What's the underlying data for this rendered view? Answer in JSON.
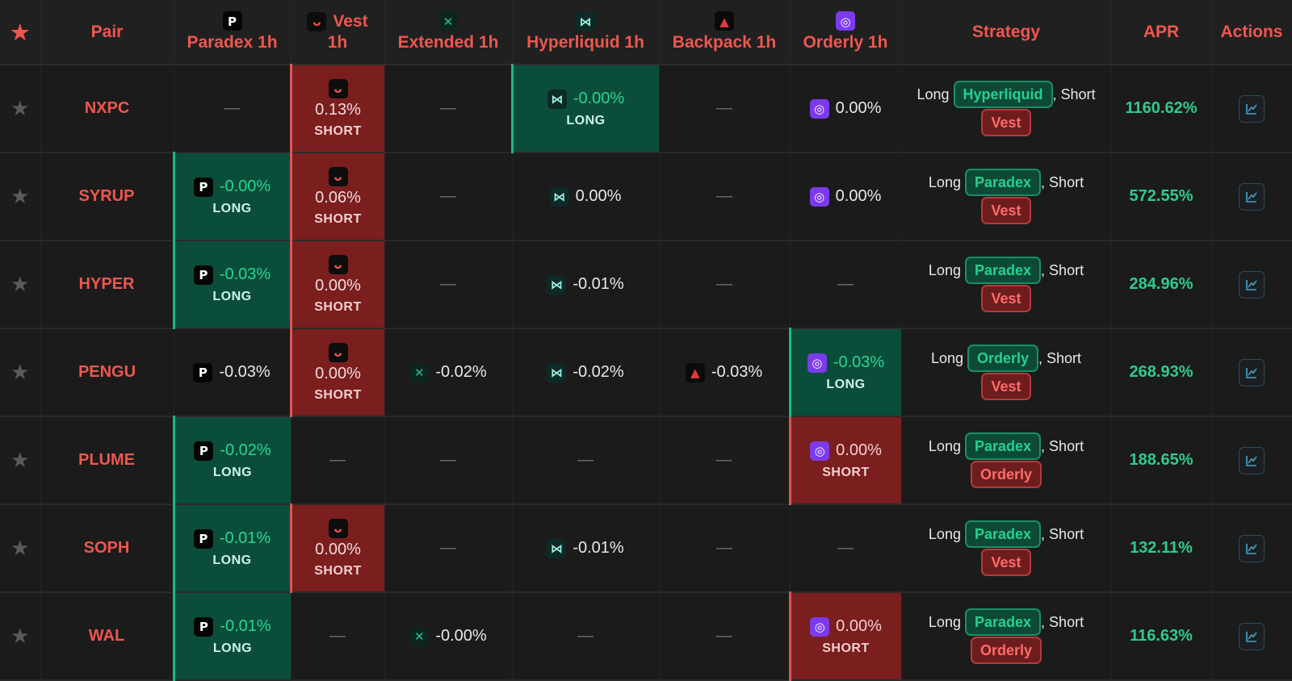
{
  "header": {
    "star": "★",
    "pair": "Pair",
    "paradex": "Paradex 1h",
    "vest_line1": "Vest",
    "vest_line2": "1h",
    "extended": "Extended 1h",
    "hyperliquid": "Hyperliquid 1h",
    "backpack": "Backpack 1h",
    "orderly": "Orderly 1h",
    "strategy": "Strategy",
    "apr": "APR",
    "actions": "Actions"
  },
  "labels": {
    "long_word": "Long",
    "short_word": ", Short",
    "dash": "—",
    "long_side": "LONG",
    "short_side": "SHORT",
    "row_star": "★"
  },
  "rows": [
    {
      "pair": "NXPC",
      "paradex": {
        "rate": null
      },
      "vest": {
        "rate": "0.13%",
        "side": "SHORT"
      },
      "extended": {
        "rate": null
      },
      "hyperliquid": {
        "rate": "-0.00%",
        "side": "LONG"
      },
      "backpack": {
        "rate": null
      },
      "orderly": {
        "rate": "0.00%"
      },
      "strategy": {
        "long": "Hyperliquid",
        "short": "Vest"
      },
      "apr": "1160.62%"
    },
    {
      "pair": "SYRUP",
      "paradex": {
        "rate": "-0.00%",
        "side": "LONG"
      },
      "vest": {
        "rate": "0.06%",
        "side": "SHORT"
      },
      "extended": {
        "rate": null
      },
      "hyperliquid": {
        "rate": "0.00%"
      },
      "backpack": {
        "rate": null
      },
      "orderly": {
        "rate": "0.00%"
      },
      "strategy": {
        "long": "Paradex",
        "short": "Vest"
      },
      "apr": "572.55%"
    },
    {
      "pair": "HYPER",
      "paradex": {
        "rate": "-0.03%",
        "side": "LONG"
      },
      "vest": {
        "rate": "0.00%",
        "side": "SHORT"
      },
      "extended": {
        "rate": null
      },
      "hyperliquid": {
        "rate": "-0.01%"
      },
      "backpack": {
        "rate": null
      },
      "orderly": {
        "rate": null
      },
      "strategy": {
        "long": "Paradex",
        "short": "Vest"
      },
      "apr": "284.96%"
    },
    {
      "pair": "PENGU",
      "paradex": {
        "rate": "-0.03%"
      },
      "vest": {
        "rate": "0.00%",
        "side": "SHORT"
      },
      "extended": {
        "rate": "-0.02%"
      },
      "hyperliquid": {
        "rate": "-0.02%"
      },
      "backpack": {
        "rate": "-0.03%"
      },
      "orderly": {
        "rate": "-0.03%",
        "side": "LONG"
      },
      "strategy": {
        "long": "Orderly",
        "short": "Vest"
      },
      "apr": "268.93%"
    },
    {
      "pair": "PLUME",
      "paradex": {
        "rate": "-0.02%",
        "side": "LONG"
      },
      "vest": {
        "rate": null
      },
      "extended": {
        "rate": null
      },
      "hyperliquid": {
        "rate": null
      },
      "backpack": {
        "rate": null
      },
      "orderly": {
        "rate": "0.00%",
        "side": "SHORT"
      },
      "strategy": {
        "long": "Paradex",
        "short": "Orderly"
      },
      "apr": "188.65%"
    },
    {
      "pair": "SOPH",
      "paradex": {
        "rate": "-0.01%",
        "side": "LONG"
      },
      "vest": {
        "rate": "0.00%",
        "side": "SHORT"
      },
      "extended": {
        "rate": null
      },
      "hyperliquid": {
        "rate": "-0.01%"
      },
      "backpack": {
        "rate": null
      },
      "orderly": {
        "rate": null
      },
      "strategy": {
        "long": "Paradex",
        "short": "Vest"
      },
      "apr": "132.11%"
    },
    {
      "pair": "WAL",
      "paradex": {
        "rate": "-0.01%",
        "side": "LONG"
      },
      "vest": {
        "rate": null
      },
      "extended": {
        "rate": "-0.00%"
      },
      "hyperliquid": {
        "rate": null
      },
      "backpack": {
        "rate": null
      },
      "orderly": {
        "rate": "0.00%",
        "side": "SHORT"
      },
      "strategy": {
        "long": "Paradex",
        "short": "Orderly"
      },
      "apr": "116.63%"
    }
  ],
  "colors": {
    "accent_red": "#f0564e",
    "long_bg": "#0b4d3b",
    "short_bg": "#7b1e1e",
    "apr_green": "#2bcd8c"
  },
  "icons": {
    "paradex": "paradex-icon",
    "vest": "vest-icon",
    "extended": "extended-icon",
    "hyperliquid": "hyperliquid-icon",
    "backpack": "backpack-icon",
    "orderly": "orderly-icon",
    "action": "chart-icon"
  }
}
